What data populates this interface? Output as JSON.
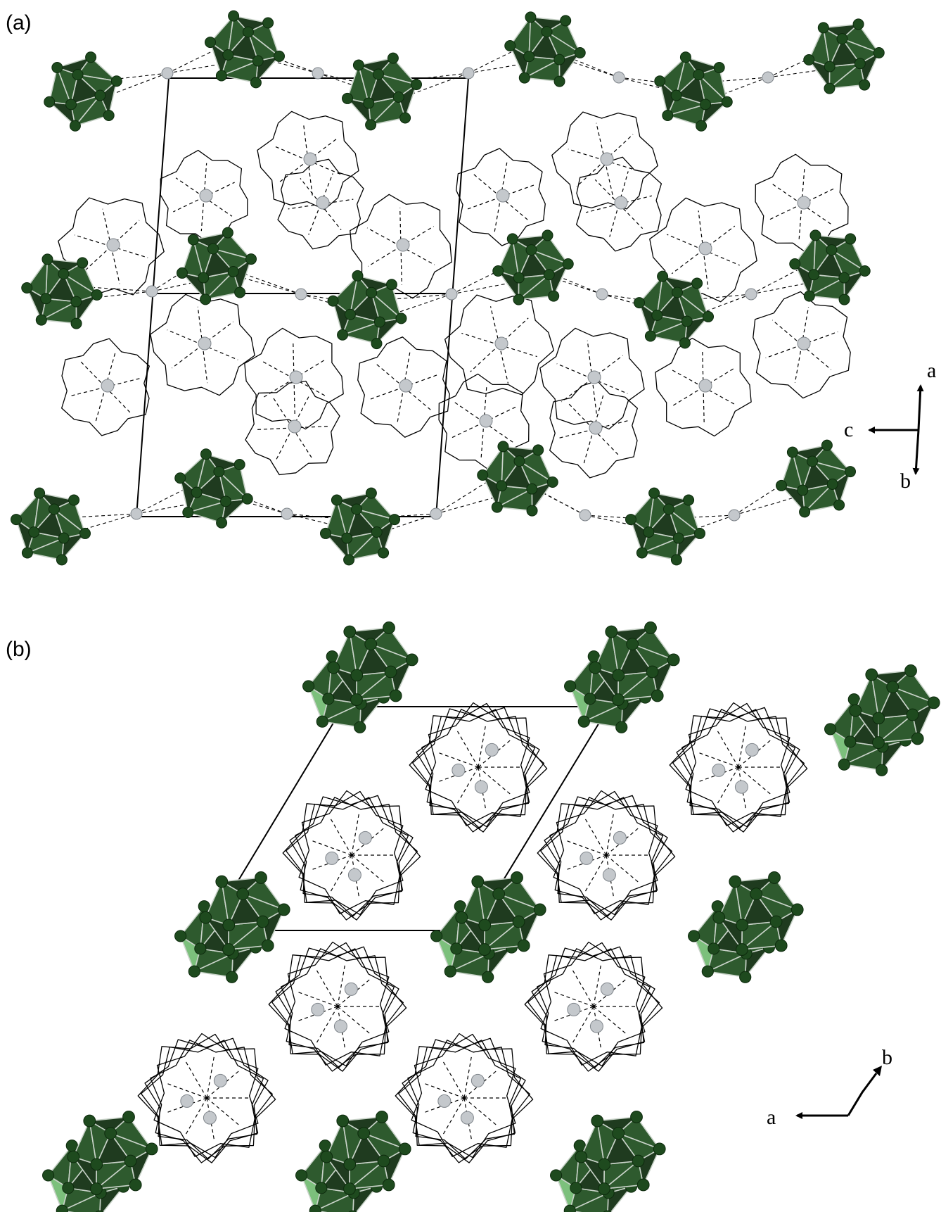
{
  "panels": [
    {
      "label": "(a)",
      "axes": {
        "x": "c",
        "up": "a",
        "down": "b"
      }
    },
    {
      "label": "(b)",
      "axes": {
        "x": "a",
        "diag": "b"
      }
    }
  ],
  "colors": {
    "icosahedron_dark": "#1f3b1f",
    "icosahedron_mid": "#2e5a2e",
    "icosahedron_light_face": "#7cc07c",
    "atom": "#1e4a1e",
    "cation_sphere": "#c4c8cc"
  }
}
